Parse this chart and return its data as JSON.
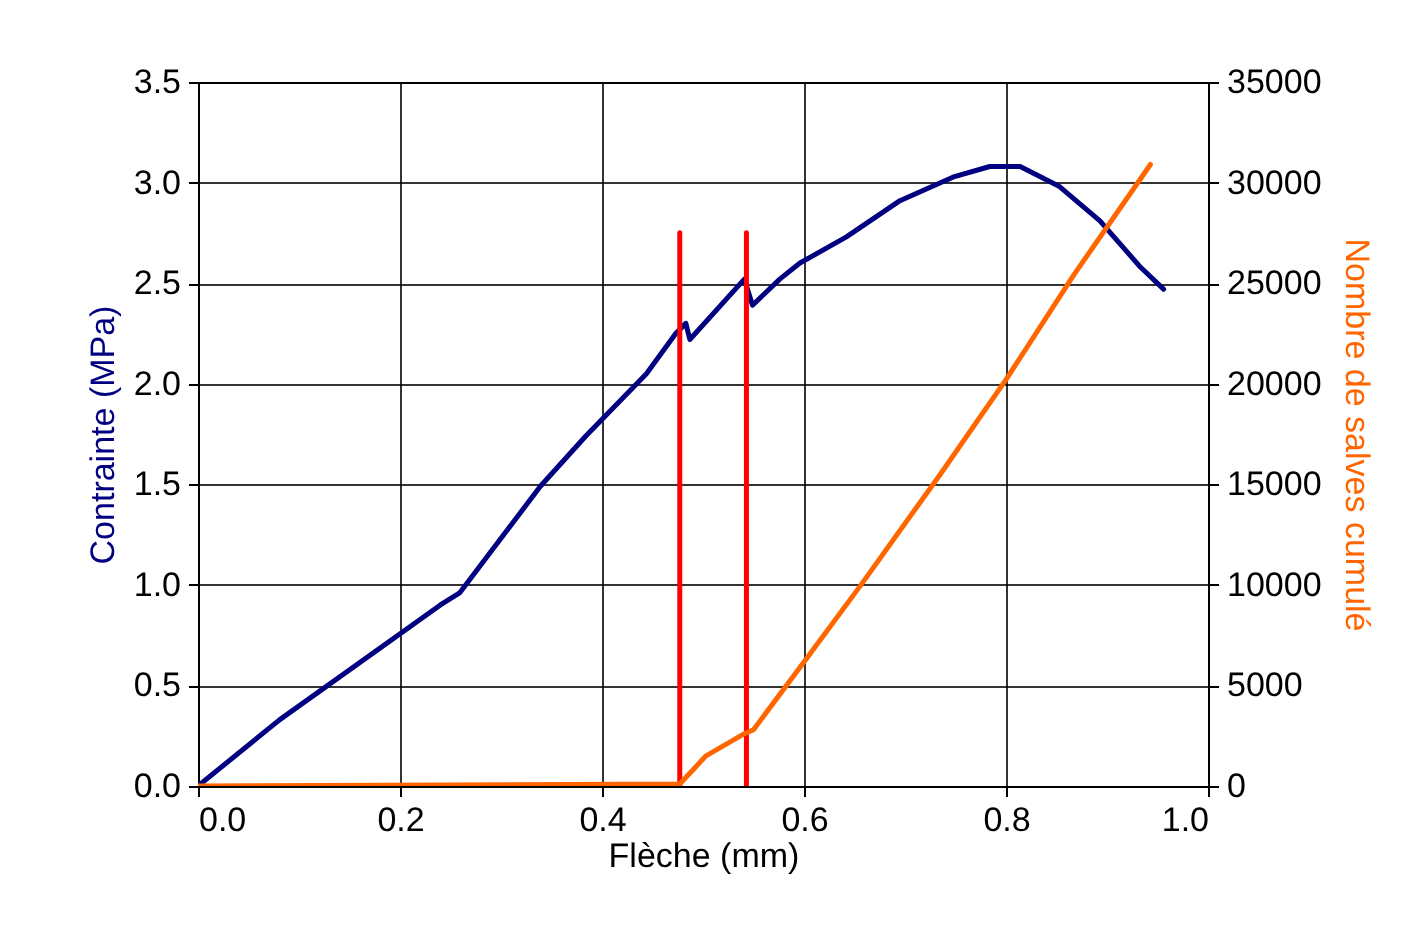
{
  "chart_data": {
    "type": "line",
    "xlabel": "Flèche (mm)",
    "ylabel": "Contrainte (MPa)",
    "y2label": "Nombre de salves cumulé",
    "xlim": [
      0,
      1
    ],
    "xticks": [
      {
        "value": 0,
        "label": "0.0"
      },
      {
        "value": 0.2,
        "label": "0.2"
      },
      {
        "value": 0.4,
        "label": "0.4"
      },
      {
        "value": 0.6,
        "label": "0.6"
      },
      {
        "value": 0.8,
        "label": "0.8"
      },
      {
        "value": 1,
        "label": "1.0"
      }
    ],
    "ylim": [
      0,
      3.5
    ],
    "yticks": [
      {
        "value": 0,
        "label": "0.0"
      },
      {
        "value": 0.5,
        "label": "0.5"
      },
      {
        "value": 1,
        "label": "1.0"
      },
      {
        "value": 1.5,
        "label": "1.5"
      },
      {
        "value": 2,
        "label": "2.0"
      },
      {
        "value": 2.5,
        "label": "2.5"
      },
      {
        "value": 3,
        "label": "3.0"
      },
      {
        "value": 3.5,
        "label": "3.5"
      }
    ],
    "y2lim": [
      0,
      35000
    ],
    "y2ticks": [
      0,
      5000,
      10000,
      15000,
      20000,
      25000,
      30000,
      35000
    ],
    "grid": true,
    "marker": "none",
    "line_style": "solid",
    "series": [
      {
        "color": "#000080",
        "x": [
          0,
          0.081,
          0.24,
          0.259,
          0.339,
          0.384,
          0.444,
          0.473,
          0.483,
          0.487,
          0.541,
          0.549,
          0.576,
          0.596,
          0.642,
          0.695,
          0.749,
          0.784,
          0.814,
          0.853,
          0.893,
          0.933,
          0.956
        ],
        "values": [
          0,
          0.33,
          0.9,
          0.96,
          1.49,
          1.74,
          2.05,
          2.25,
          2.3,
          2.22,
          2.52,
          2.39,
          2.52,
          2.6,
          2.73,
          2.91,
          3.03,
          3.08,
          3.08,
          2.98,
          2.81,
          2.58,
          2.47
        ]
      },
      {
        "color": "#ff6600",
        "axis": "y2",
        "x": [
          0,
          0.477,
          0.503,
          0.541,
          0.55,
          0.602,
          0.655,
          0.735,
          0.8,
          0.867,
          0.943
        ],
        "values": [
          0,
          100,
          1500,
          2600,
          2800,
          6300,
          9900,
          15500,
          20200,
          25400,
          30900
        ]
      },
      {
        "color": "#ff0000",
        "x": [
          0.477,
          0.477
        ],
        "values": [
          0,
          2.75
        ]
      },
      {
        "color": "#ff0000",
        "x": [
          0.543,
          0.543
        ],
        "values": [
          0,
          2.75
        ]
      }
    ]
  }
}
